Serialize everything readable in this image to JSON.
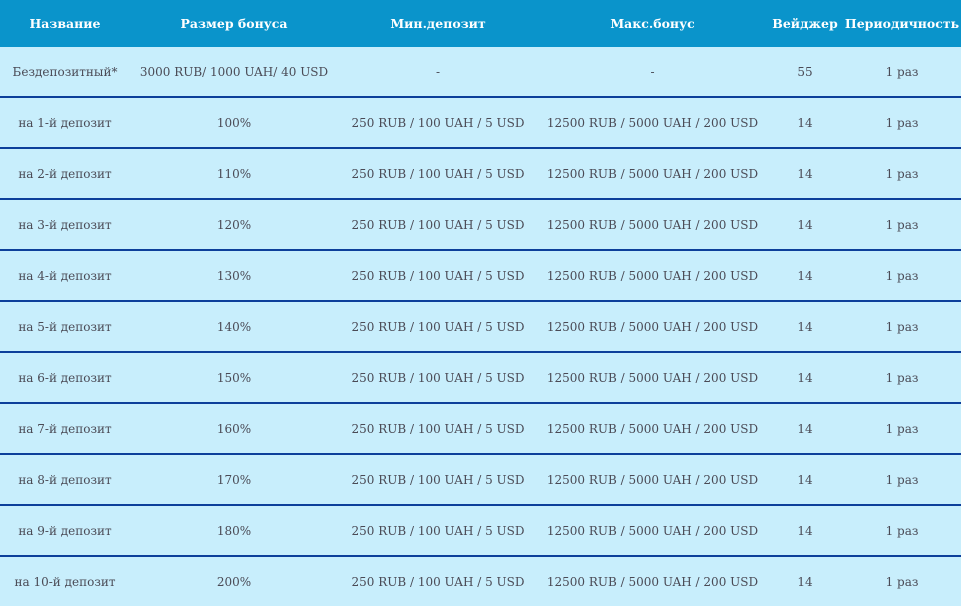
{
  "colors": {
    "header_bg": "#0a94cb",
    "row_bg": "#c8eefc",
    "separator": "#0d3f9a",
    "text": "#4a4a55"
  },
  "headers": [
    "Название",
    "Размер бонуса",
    "Мин.депозит",
    "Макс.бонус",
    "Вейджер",
    "Периодичность"
  ],
  "rows": [
    [
      "Бездепозитный*",
      "3000 RUB/ 1000 UAH/ 40 USD",
      "-",
      "-",
      "55",
      "1 раз"
    ],
    [
      "на 1-й депозит",
      "100%",
      "250 RUB / 100 UAH / 5 USD",
      "12500 RUB / 5000 UAH / 200 USD",
      "14",
      "1 раз"
    ],
    [
      "на 2-й депозит",
      "110%",
      "250 RUB / 100 UAH / 5 USD",
      "12500 RUB / 5000 UAH / 200 USD",
      "14",
      "1 раз"
    ],
    [
      "на 3-й депозит",
      "120%",
      "250 RUB / 100 UAH / 5 USD",
      "12500 RUB / 5000 UAH / 200 USD",
      "14",
      "1 раз"
    ],
    [
      "на 4-й депозит",
      "130%",
      "250 RUB / 100 UAH / 5 USD",
      "12500 RUB / 5000 UAH / 200 USD",
      "14",
      "1 раз"
    ],
    [
      "на 5-й депозит",
      "140%",
      "250 RUB / 100 UAH / 5 USD",
      "12500 RUB / 5000 UAH / 200 USD",
      "14",
      "1 раз"
    ],
    [
      "на 6-й депозит",
      "150%",
      "250 RUB / 100 UAH / 5 USD",
      "12500 RUB / 5000 UAH / 200 USD",
      "14",
      "1 раз"
    ],
    [
      "на 7-й депозит",
      "160%",
      "250 RUB / 100 UAH / 5 USD",
      "12500 RUB / 5000 UAH / 200 USD",
      "14",
      "1 раз"
    ],
    [
      "на 8-й депозит",
      "170%",
      "250 RUB / 100 UAH / 5 USD",
      "12500 RUB / 5000 UAH / 200 USD",
      "14",
      "1 раз"
    ],
    [
      "на 9-й депозит",
      "180%",
      "250 RUB / 100 UAH / 5 USD",
      "12500 RUB / 5000 UAH / 200 USD",
      "14",
      "1 раз"
    ],
    [
      "на 10-й депозит",
      "200%",
      "250 RUB / 100 UAH / 5 USD",
      "12500 RUB / 5000 UAH / 200 USD",
      "14",
      "1 раз"
    ]
  ]
}
